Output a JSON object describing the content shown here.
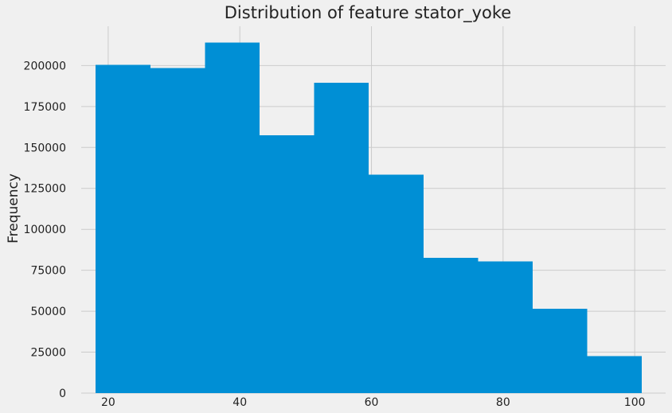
{
  "chart_data": {
    "type": "bar",
    "title": "Distribution of feature stator_yoke",
    "xlabel": "",
    "ylabel": "Frequency",
    "bin_edges": [
      18.1,
      26.4,
      34.7,
      43.0,
      51.3,
      59.6,
      67.9,
      76.2,
      84.5,
      92.8,
      101.1
    ],
    "values": [
      200500,
      198500,
      214000,
      157500,
      189500,
      133500,
      82500,
      80500,
      51500,
      22500
    ],
    "xlim": [
      15.9,
      104.7
    ],
    "ylim": [
      0,
      224000
    ],
    "xticks": [
      20,
      40,
      60,
      80,
      100
    ],
    "yticks": [
      0,
      25000,
      50000,
      75000,
      100000,
      125000,
      150000,
      175000,
      200000
    ],
    "grid": true,
    "bar_color": "#008fd5",
    "background_color": "#f0f0f0",
    "grid_color": "#cbcbcb"
  }
}
